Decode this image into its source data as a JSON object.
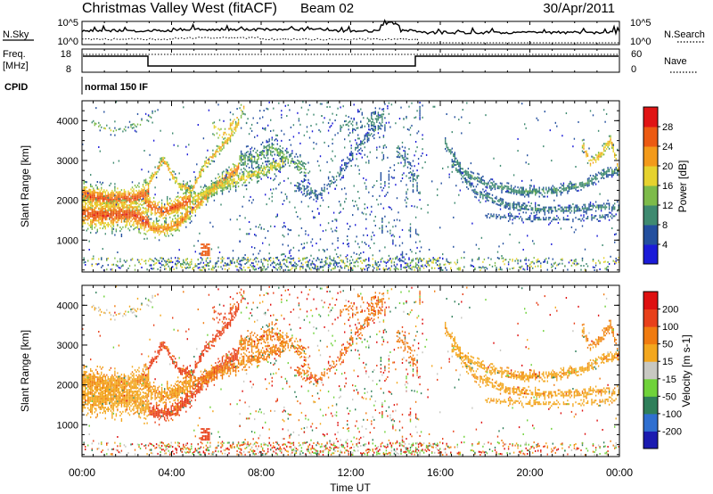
{
  "header": {
    "title": "Christmas Valley West (fitACF)",
    "beam": "Beam 02",
    "date": "30/Apr/2011"
  },
  "nsky_panel": {
    "left_label": "N.Sky",
    "right_label": "N.Search",
    "left_ticks": [
      "10^5",
      "10^0"
    ],
    "right_ticks": [
      "10^5",
      "10^0"
    ]
  },
  "freq_panel": {
    "left_label_1": "Freq.",
    "left_label_2": "[MHz]",
    "left_ticks": [
      "18",
      "8"
    ],
    "right_label": "Nave",
    "right_ticks": [
      "60",
      "0"
    ]
  },
  "cpid_panel": {
    "label": "CPID",
    "value": "normal 150 IF"
  },
  "chart_data": [
    {
      "type": "heatmap",
      "name": "power",
      "ylabel": "Slant Range [km]",
      "y_ticks": [
        "1000",
        "2000",
        "3000",
        "4000"
      ],
      "ylim": [
        200,
        4500
      ],
      "colorbar_label": "Power [dB]",
      "colorbar_ticks": [
        "4",
        "8",
        "12",
        "16",
        "20",
        "24",
        "28"
      ],
      "colors": [
        "#1b1bd8",
        "#234f9e",
        "#3f8a70",
        "#7dbb4a",
        "#e6d22e",
        "#f39a1a",
        "#ec5a12",
        "#e01414"
      ]
    },
    {
      "type": "heatmap",
      "name": "velocity",
      "ylabel": "Slant Range [km]",
      "y_ticks": [
        "1000",
        "2000",
        "3000",
        "4000"
      ],
      "ylim": [
        200,
        4500
      ],
      "xlabel": "Time UT",
      "x_ticks": [
        "00:00",
        "04:00",
        "08:00",
        "12:00",
        "16:00",
        "20:00",
        "00:00"
      ],
      "colorbar_label": "Velocity [m s-1]",
      "colorbar_ticks": [
        "200",
        "100",
        "50",
        "15",
        "-15",
        "-50",
        "-100",
        "-200"
      ],
      "colors": [
        "#1b1bb0",
        "#2f6fd0",
        "#2f7f5a",
        "#6fd23a",
        "#c8c8c2",
        "#f3a71e",
        "#f07b10",
        "#e8401a",
        "#de1010"
      ]
    }
  ]
}
